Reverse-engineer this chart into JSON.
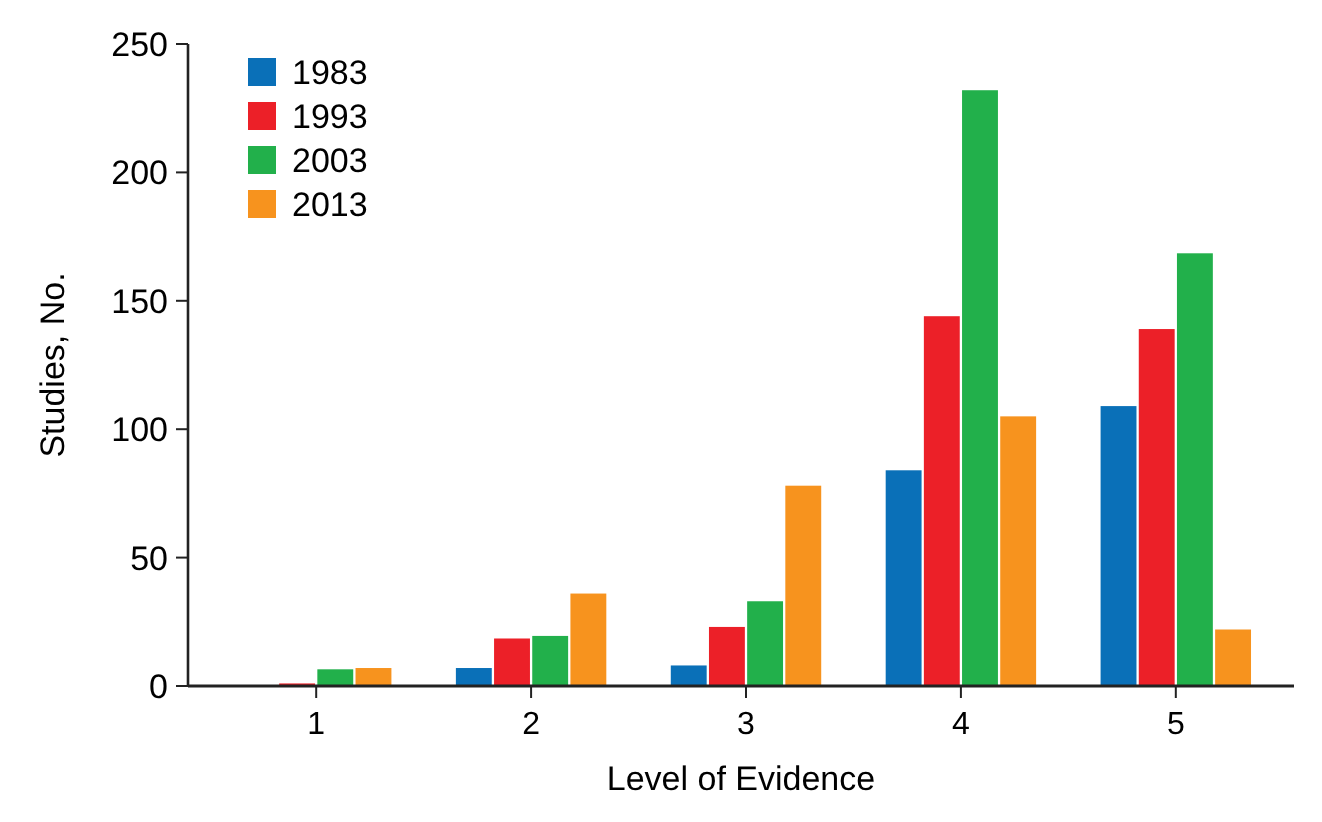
{
  "chart_data": {
    "type": "bar",
    "xlabel": "Level of Evidence",
    "ylabel": "Studies, No.",
    "categories": [
      "1",
      "2",
      "3",
      "4",
      "5"
    ],
    "series": [
      {
        "name": "1983",
        "color": "#0a70b8",
        "values": [
          0,
          7,
          8,
          84,
          109
        ]
      },
      {
        "name": "1993",
        "color": "#ec2028",
        "values": [
          1,
          18.5,
          23,
          144,
          139
        ]
      },
      {
        "name": "2003",
        "color": "#22b04b",
        "values": [
          6.5,
          19.5,
          33,
          232,
          168.5
        ]
      },
      {
        "name": "2013",
        "color": "#f7931e",
        "values": [
          7,
          36,
          78,
          105,
          22
        ]
      }
    ],
    "ylim": [
      0,
      250
    ],
    "yticks": [
      0,
      50,
      100,
      150,
      200,
      250
    ],
    "grid": false,
    "legend": "top left"
  }
}
